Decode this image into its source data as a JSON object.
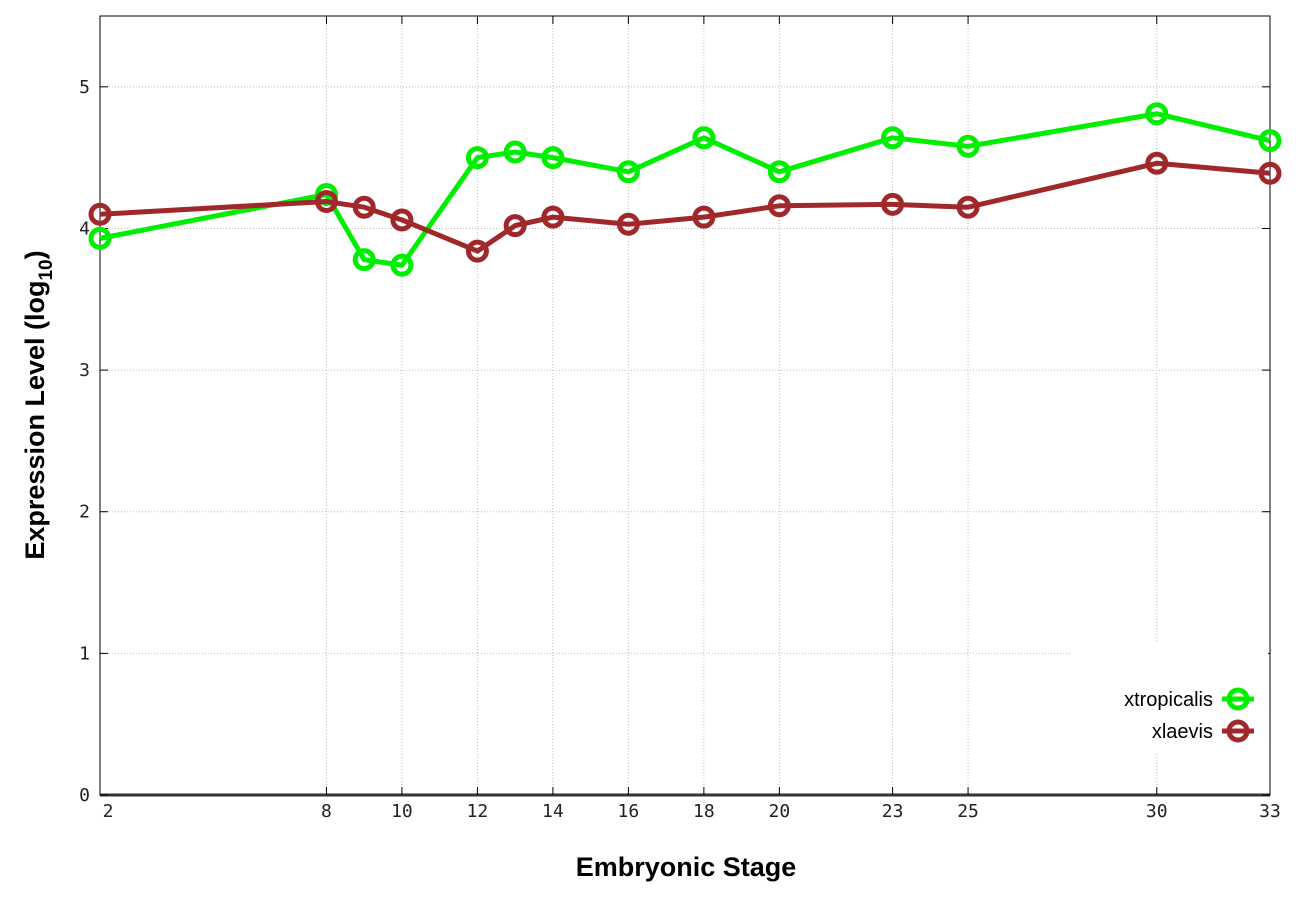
{
  "chart_data": {
    "type": "line",
    "title": "",
    "xlabel": "Embryonic Stage",
    "ylabel": "Expression Level (log10)",
    "ylabel_parts": {
      "main": "Expression Level (log",
      "sub": "10",
      "end": ")"
    },
    "xlim": [
      2,
      33
    ],
    "ylim": [
      0,
      5.5
    ],
    "x_ticks": [
      2,
      8,
      10,
      12,
      14,
      16,
      18,
      20,
      23,
      25,
      30,
      33
    ],
    "y_ticks": [
      0,
      1,
      2,
      3,
      4,
      5
    ],
    "grid": true,
    "legend_position": "bottom-right",
    "x": [
      2,
      8,
      9,
      10,
      12,
      13,
      14,
      16,
      18,
      20,
      23,
      25,
      30,
      33
    ],
    "series": [
      {
        "name": "xtropicalis",
        "color": "#00ee00",
        "values": [
          3.93,
          4.24,
          3.78,
          3.74,
          4.5,
          4.54,
          4.5,
          4.4,
          4.64,
          4.4,
          4.64,
          4.58,
          4.81,
          4.62
        ]
      },
      {
        "name": "xlaevis",
        "color": "#a0282a",
        "values": [
          4.1,
          4.19,
          4.15,
          4.06,
          3.84,
          4.02,
          4.08,
          4.03,
          4.08,
          4.16,
          4.17,
          4.15,
          4.46,
          4.39
        ]
      }
    ]
  }
}
